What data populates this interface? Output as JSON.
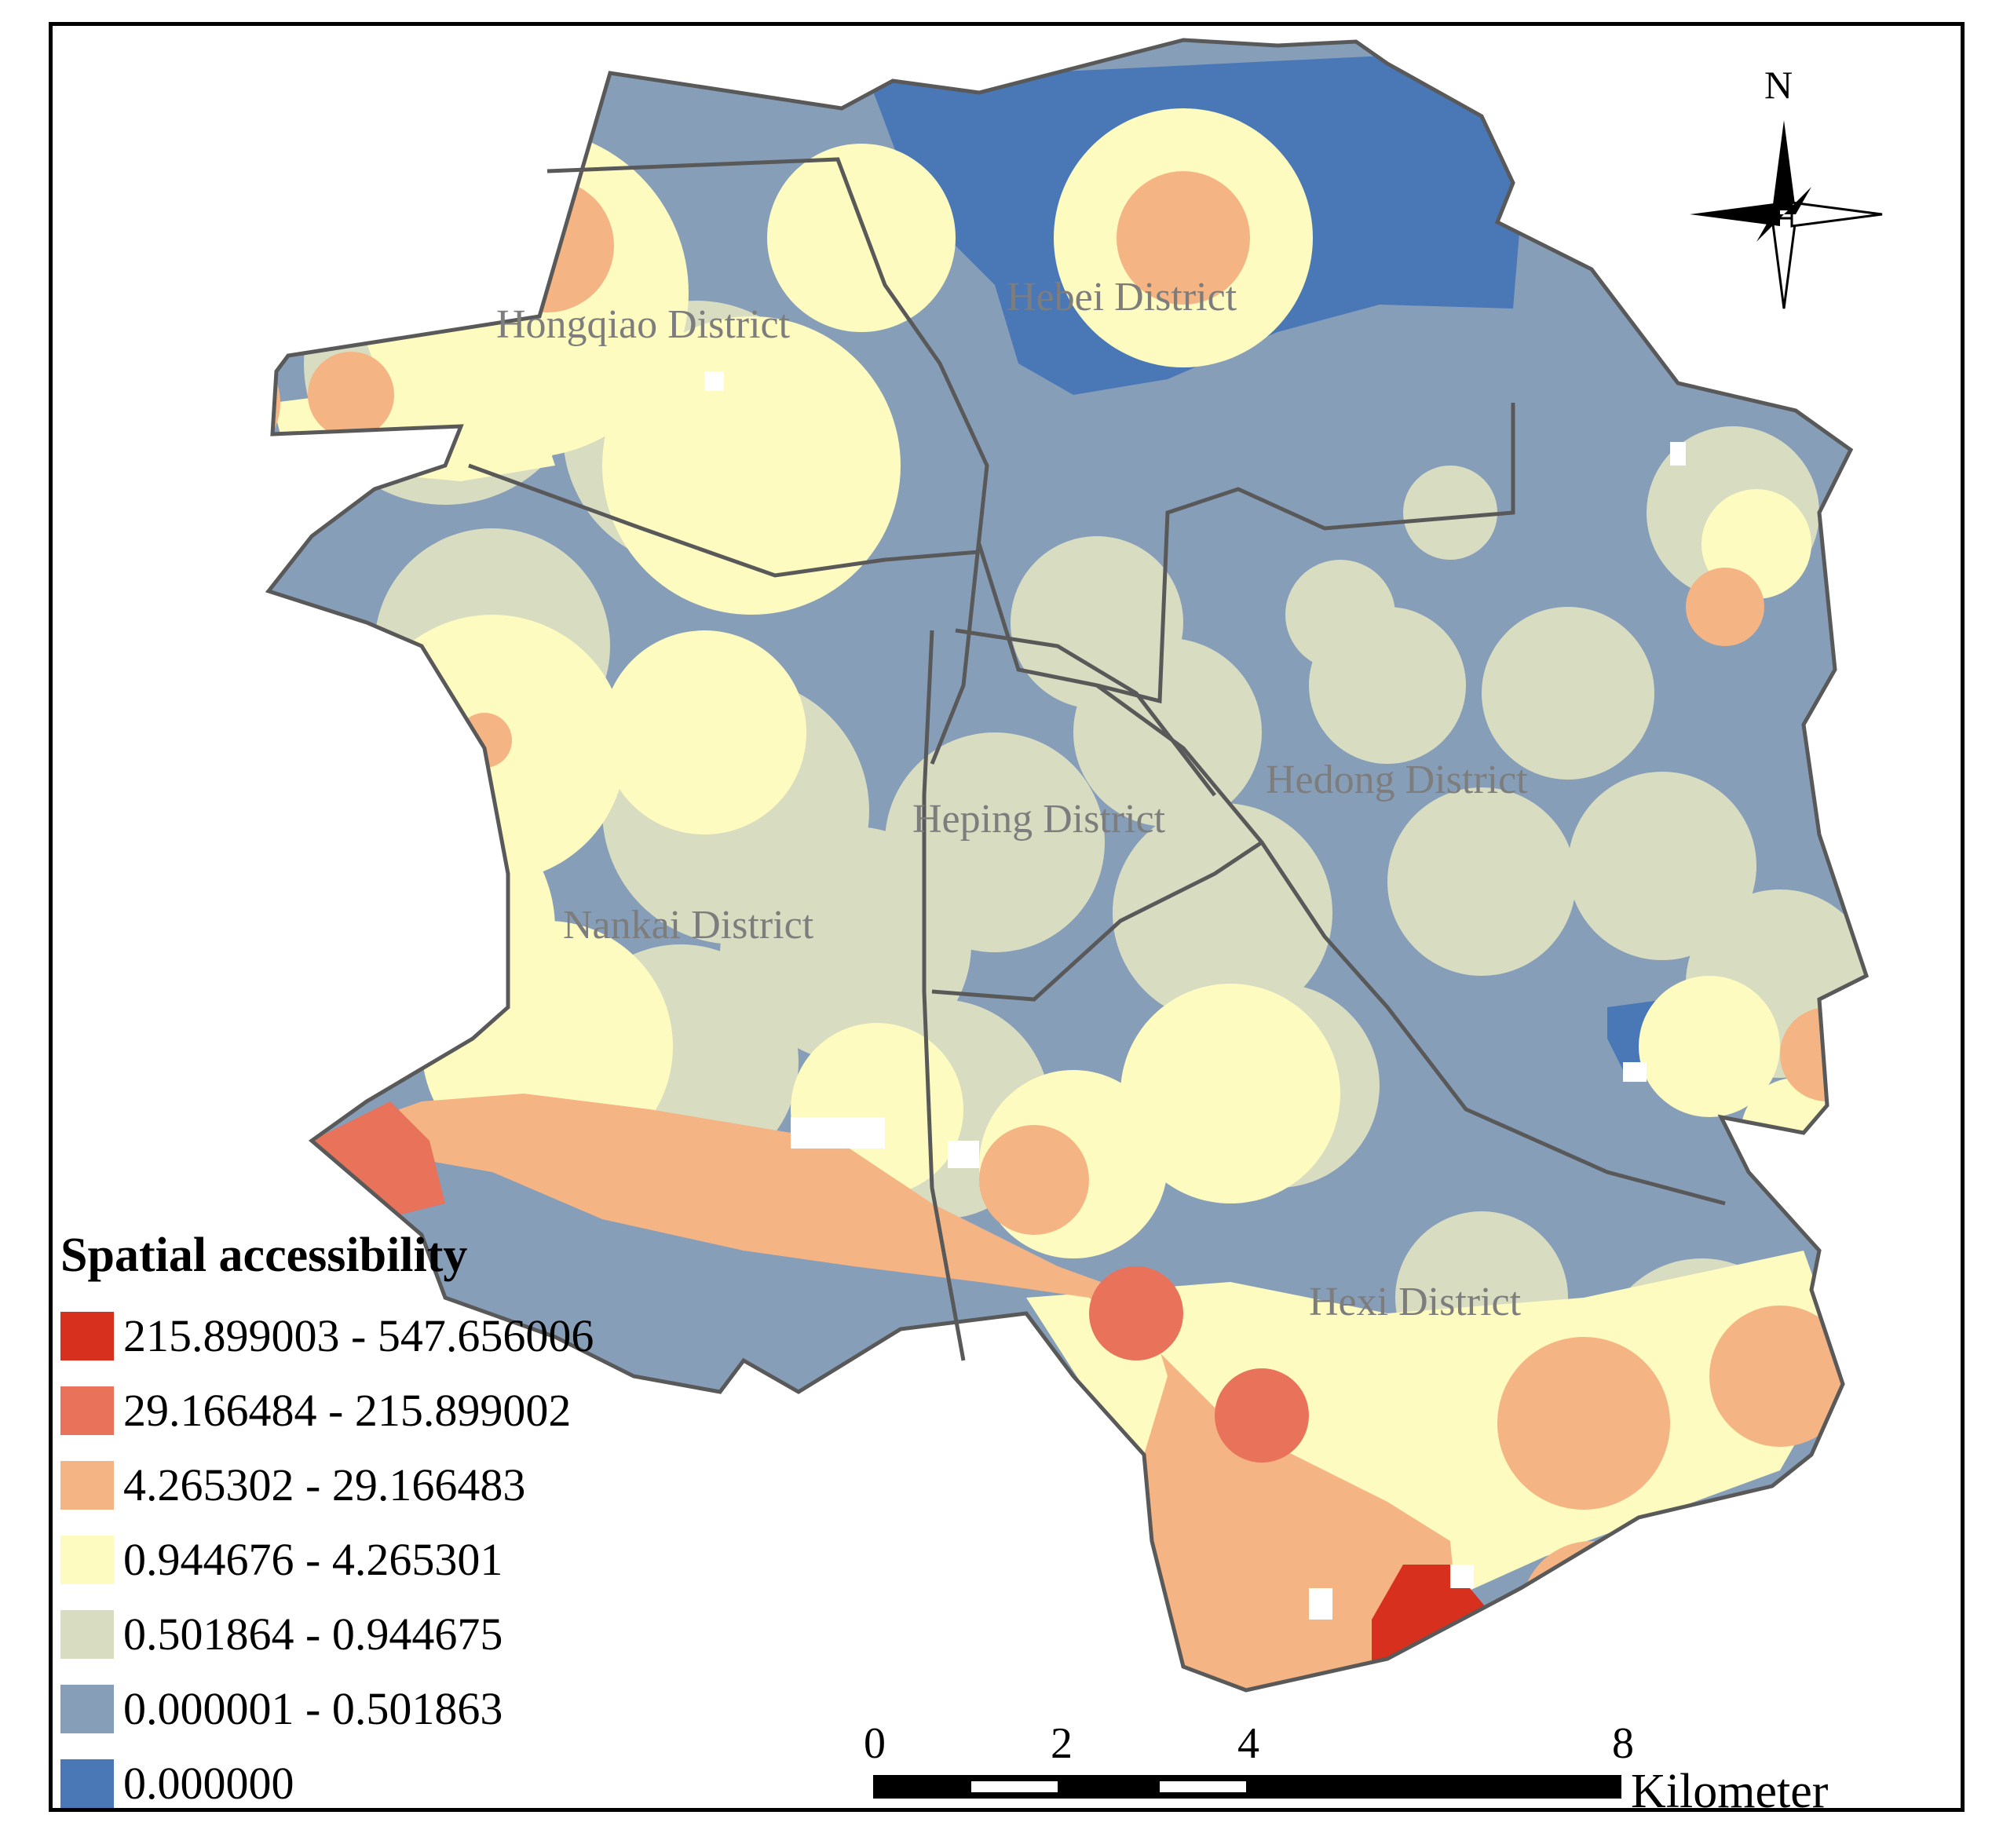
{
  "map": {
    "districts": [
      {
        "name": "Hongqiao District"
      },
      {
        "name": "Hebei District"
      },
      {
        "name": "Hedong District"
      },
      {
        "name": "Heping District"
      },
      {
        "name": "Nankai District"
      },
      {
        "name": "Hexi District"
      }
    ],
    "north_label": "N"
  },
  "legend": {
    "title": "Spatial accessibility",
    "items": [
      {
        "label": "215.899003 - 547.656006",
        "color": "#d7301f"
      },
      {
        "label": "29.166484 - 215.899002",
        "color": "#e8725a"
      },
      {
        "label": "4.265302 - 29.166483",
        "color": "#f5b483"
      },
      {
        "label": "0.944676 - 4.265301",
        "color": "#fdfbc0"
      },
      {
        "label": "0.501864 - 0.944675",
        "color": "#d8dcc1"
      },
      {
        "label": "0.000001 - 0.501863",
        "color": "#879eb9"
      },
      {
        "label": "0.000000",
        "color": "#4a78b6"
      }
    ]
  },
  "scale_bar": {
    "ticks": [
      "0",
      "2",
      "4",
      "8"
    ],
    "unit": "Kilometer"
  }
}
